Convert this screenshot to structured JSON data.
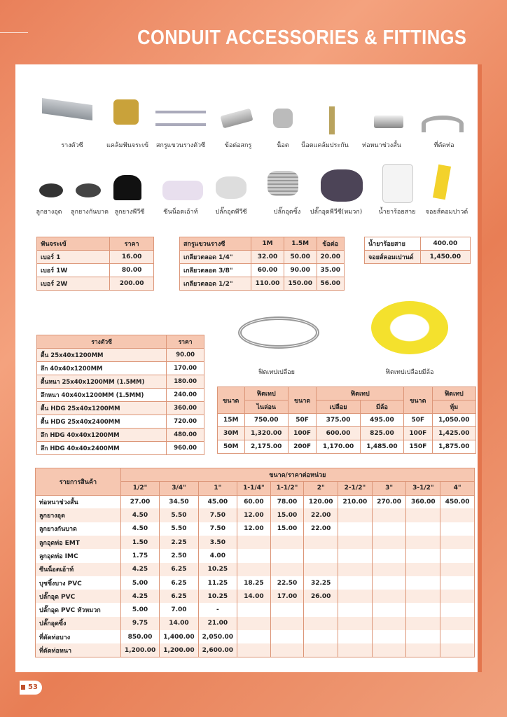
{
  "header": {
    "title": "CONDUIT ACCESSORIES & FITTINGS"
  },
  "page_number": "53",
  "products_row1": [
    "รางตัวซี",
    "แคล้มฟันจระเข้",
    "สกรูแขวนรางตัวซี",
    "ข้อต่อสกรู",
    "น็อต",
    "น็อตแคล้มประกัน",
    "ท่อหนาช่วงสั้น",
    "ที่ดัดท่อ"
  ],
  "products_row2": [
    "ลูกยางอุด",
    "ลูกยางกันบาด",
    "ลูกยางพีวีซี",
    "ซีนน็อตเอ้าท์",
    "ปลั๊กอุดพีวีซี",
    "ปลั๊กอุดซิ้ง",
    "ปลั๊กอุดพีวีซี(หมวก)",
    "น้ำยาร้อยสาย",
    "จอยส์คอมปาวด์"
  ],
  "fish_tape_labels": [
    "ฟิตเทปเปลือย",
    "ฟิตเทปเปลือยมีล้อ"
  ],
  "table_clamp": {
    "headers": [
      "ฟันจระเข้",
      "ราคา"
    ],
    "rows": [
      [
        "เบอร์ 1",
        "16.00"
      ],
      [
        "เบอร์ 1W",
        "80.00"
      ],
      [
        "เบอร์ 2W",
        "200.00"
      ]
    ]
  },
  "table_rod": {
    "headers": [
      "สกรูแขวนรางซี",
      "1M",
      "1.5M",
      "ข้อต่อ"
    ],
    "rows": [
      [
        "เกลียวตลอด 1/4\"",
        "32.00",
        "50.00",
        "20.00"
      ],
      [
        "เกลียวตลอด 3/8\"",
        "60.00",
        "90.00",
        "35.00"
      ],
      [
        "เกลียวตลอด 1/2\"",
        "110.00",
        "150.00",
        "56.00"
      ]
    ]
  },
  "table_compound": {
    "rows": [
      [
        "น้ำยาร้อยสาย",
        "400.00"
      ],
      [
        "จอยส์คอมเปานด์",
        "1,450.00"
      ]
    ]
  },
  "table_cchannel": {
    "headers": [
      "รางตัวซี",
      "ราคา"
    ],
    "rows": [
      [
        "ตื้น 25x40x1200MM",
        "90.00"
      ],
      [
        "ลึก 40x40x1200MM",
        "170.00"
      ],
      [
        "ตื้นหนา 25x40x1200MM (1.5MM)",
        "180.00"
      ],
      [
        "ลึกหนา 40x40x1200MM (1.5MM)",
        "240.00"
      ],
      [
        "ตื้น HDG 25x40x1200MM",
        "360.00"
      ],
      [
        "ตื้น HDG 25x40x2400MM",
        "720.00"
      ],
      [
        "ลึก HDG 40x40x1200MM",
        "480.00"
      ],
      [
        "ลึก HDG 40x40x2400MM",
        "960.00"
      ]
    ]
  },
  "table_fishtape": {
    "h_size": "ขนาด",
    "h_tape": "ฟิตเทป",
    "h_nylon": "ไนล่อน",
    "h_bare": "เปลือย",
    "h_wheel": "มีล้อ",
    "h_covered": "หุ้ม",
    "rows": [
      [
        "15M",
        "750.00",
        "50F",
        "375.00",
        "495.00",
        "50F",
        "1,050.00"
      ],
      [
        "30M",
        "1,320.00",
        "100F",
        "600.00",
        "825.00",
        "100F",
        "1,425.00"
      ],
      [
        "50M",
        "2,175.00",
        "200F",
        "1,170.00",
        "1,485.00",
        "150F",
        "1,875.00"
      ]
    ]
  },
  "table_main": {
    "h_item": "รายการสินค้า",
    "h_group": "ขนาด/ราคาต่อหน่วย",
    "sizes": [
      "1/2\"",
      "3/4\"",
      "1\"",
      "1-1/4\"",
      "1-1/2\"",
      "2\"",
      "2-1/2\"",
      "3\"",
      "3-1/2\"",
      "4\""
    ],
    "rows": [
      [
        "ท่อหนาช่วงสั้น",
        "27.00",
        "34.50",
        "45.00",
        "60.00",
        "78.00",
        "120.00",
        "210.00",
        "270.00",
        "360.00",
        "450.00"
      ],
      [
        "ลูกยางอุด",
        "4.50",
        "5.50",
        "7.50",
        "12.00",
        "15.00",
        "22.00",
        "",
        "",
        "",
        ""
      ],
      [
        "ลูกยางกันบาด",
        "4.50",
        "5.50",
        "7.50",
        "12.00",
        "15.00",
        "22.00",
        "",
        "",
        "",
        ""
      ],
      [
        "ลูกอุดท่อ EMT",
        "1.50",
        "2.25",
        "3.50",
        "",
        "",
        "",
        "",
        "",
        "",
        ""
      ],
      [
        "ลูกอุดท่อ IMC",
        "1.75",
        "2.50",
        "4.00",
        "",
        "",
        "",
        "",
        "",
        "",
        ""
      ],
      [
        "ซีนน็อตเอ้าท์",
        "4.25",
        "6.25",
        "10.25",
        "",
        "",
        "",
        "",
        "",
        "",
        ""
      ],
      [
        "บุชชิ้งบาง PVC",
        "5.00",
        "6.25",
        "11.25",
        "18.25",
        "22.50",
        "32.25",
        "",
        "",
        "",
        ""
      ],
      [
        "ปลั๊กอุด PVC",
        "4.25",
        "6.25",
        "10.25",
        "14.00",
        "17.00",
        "26.00",
        "",
        "",
        "",
        ""
      ],
      [
        "ปลั๊กอุด PVC หัวหมวก",
        "5.00",
        "7.00",
        "-",
        "",
        "",
        "",
        "",
        "",
        "",
        ""
      ],
      [
        "ปลั๊กอุดซิ้ง",
        "9.75",
        "14.00",
        "21.00",
        "",
        "",
        "",
        "",
        "",
        "",
        ""
      ],
      [
        "ที่ดัดท่อบาง",
        "850.00",
        "1,400.00",
        "2,050.00",
        "",
        "",
        "",
        "",
        "",
        "",
        ""
      ],
      [
        "ที่ดัดท่อหนา",
        "1,200.00",
        "1,200.00",
        "2,600.00",
        "",
        "",
        "",
        "",
        "",
        "",
        ""
      ]
    ]
  }
}
